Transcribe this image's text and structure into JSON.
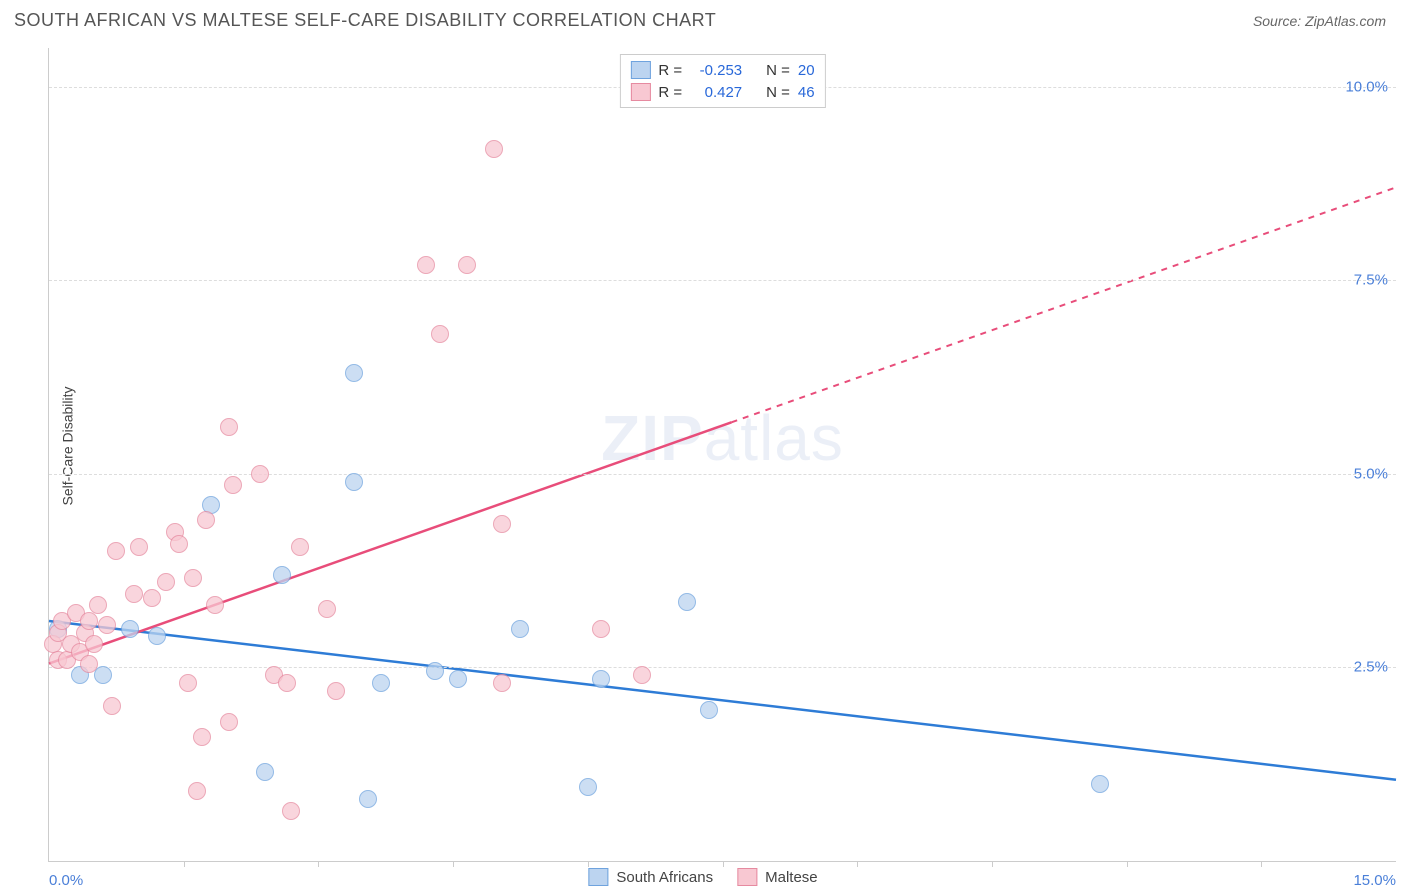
{
  "title": "SOUTH AFRICAN VS MALTESE SELF-CARE DISABILITY CORRELATION CHART",
  "source": "Source: ZipAtlas.com",
  "watermark_bold": "ZIP",
  "watermark_rest": "atlas",
  "ylabel": "Self-Care Disability",
  "chart": {
    "type": "scatter",
    "xlim": [
      0,
      15
    ],
    "ylim": [
      0,
      10.5
    ],
    "xtick_labels": [
      {
        "pos": 0.0,
        "label": "0.0%",
        "align": "left"
      },
      {
        "pos": 15.0,
        "label": "15.0%",
        "align": "right"
      }
    ],
    "xtick_minor": [
      1.5,
      3.0,
      4.5,
      6.0,
      7.5,
      9.0,
      10.5,
      12.0,
      13.5
    ],
    "ytick_labels": [
      {
        "pos": 2.5,
        "label": "2.5%"
      },
      {
        "pos": 5.0,
        "label": "5.0%"
      },
      {
        "pos": 7.5,
        "label": "7.5%"
      },
      {
        "pos": 10.0,
        "label": "10.0%"
      }
    ],
    "background_color": "#ffffff",
    "grid_color": "#dddddd",
    "marker_size": 18,
    "series": [
      {
        "name": "South Africans",
        "color_fill": "#bcd4f0",
        "color_stroke": "#6fa3de",
        "points": [
          [
            0.1,
            3.0
          ],
          [
            0.35,
            2.4
          ],
          [
            0.6,
            2.4
          ],
          [
            0.9,
            3.0
          ],
          [
            1.2,
            2.9
          ],
          [
            1.8,
            4.6
          ],
          [
            2.6,
            3.7
          ],
          [
            3.4,
            6.3
          ],
          [
            3.4,
            4.9
          ],
          [
            3.7,
            2.3
          ],
          [
            2.4,
            1.15
          ],
          [
            3.55,
            0.8
          ],
          [
            4.3,
            2.45
          ],
          [
            4.55,
            2.35
          ],
          [
            5.25,
            3.0
          ],
          [
            6.0,
            0.95
          ],
          [
            6.15,
            2.35
          ],
          [
            7.1,
            3.35
          ],
          [
            7.35,
            1.95
          ],
          [
            11.7,
            1.0
          ]
        ],
        "trend": {
          "x1": 0,
          "y1": 3.1,
          "x2": 15,
          "y2": 1.05,
          "dash_from_x": null,
          "color": "#2e7cd6"
        }
      },
      {
        "name": "Maltese",
        "color_fill": "#f8c8d2",
        "color_stroke": "#e68aa0",
        "points": [
          [
            0.05,
            2.8
          ],
          [
            0.1,
            2.95
          ],
          [
            0.1,
            2.6
          ],
          [
            0.15,
            3.1
          ],
          [
            0.2,
            2.6
          ],
          [
            0.25,
            2.8
          ],
          [
            0.3,
            3.2
          ],
          [
            0.35,
            2.7
          ],
          [
            0.4,
            2.95
          ],
          [
            0.45,
            3.1
          ],
          [
            0.45,
            2.55
          ],
          [
            0.5,
            2.8
          ],
          [
            0.55,
            3.3
          ],
          [
            0.65,
            3.05
          ],
          [
            0.7,
            2.0
          ],
          [
            0.95,
            3.45
          ],
          [
            0.75,
            4.0
          ],
          [
            1.0,
            4.05
          ],
          [
            1.15,
            3.4
          ],
          [
            1.3,
            3.6
          ],
          [
            1.4,
            4.25
          ],
          [
            1.45,
            4.1
          ],
          [
            1.55,
            2.3
          ],
          [
            1.6,
            3.65
          ],
          [
            1.65,
            0.9
          ],
          [
            1.7,
            1.6
          ],
          [
            1.75,
            4.4
          ],
          [
            1.85,
            3.3
          ],
          [
            2.0,
            1.8
          ],
          [
            2.0,
            5.6
          ],
          [
            2.05,
            4.85
          ],
          [
            2.35,
            5.0
          ],
          [
            2.5,
            2.4
          ],
          [
            2.65,
            2.3
          ],
          [
            2.7,
            0.65
          ],
          [
            2.8,
            4.05
          ],
          [
            3.1,
            3.25
          ],
          [
            3.2,
            2.2
          ],
          [
            4.2,
            7.7
          ],
          [
            4.35,
            6.8
          ],
          [
            4.65,
            7.7
          ],
          [
            4.95,
            9.2
          ],
          [
            5.05,
            4.35
          ],
          [
            5.05,
            2.3
          ],
          [
            6.15,
            3.0
          ],
          [
            6.6,
            2.4
          ]
        ],
        "trend": {
          "x1": 0,
          "y1": 2.55,
          "x2": 15,
          "y2": 8.7,
          "dash_from_x": 7.6,
          "color": "#e84d7a"
        }
      }
    ],
    "legend_top": [
      {
        "swatch_fill": "#bcd4f0",
        "swatch_stroke": "#6fa3de",
        "r_label": "R = ",
        "r_value": "-0.253",
        "n_label": "N = ",
        "n_value": "20"
      },
      {
        "swatch_fill": "#f8c8d2",
        "swatch_stroke": "#e68aa0",
        "r_label": "R = ",
        "r_value": " 0.427",
        "n_label": "N = ",
        "n_value": "46"
      }
    ],
    "legend_bottom": [
      {
        "swatch_fill": "#bcd4f0",
        "swatch_stroke": "#6fa3de",
        "label": "South Africans"
      },
      {
        "swatch_fill": "#f8c8d2",
        "swatch_stroke": "#e68aa0",
        "label": "Maltese"
      }
    ]
  }
}
